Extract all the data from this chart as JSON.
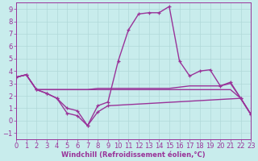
{
  "background_color": "#c8ecec",
  "grid_color": "#b0d8d8",
  "line_color": "#993399",
  "xlim": [
    0,
    23
  ],
  "ylim": [
    -1.5,
    9.5
  ],
  "yticks": [
    -1,
    0,
    1,
    2,
    3,
    4,
    5,
    6,
    7,
    8,
    9
  ],
  "xticks": [
    0,
    1,
    2,
    3,
    4,
    5,
    6,
    7,
    8,
    9,
    10,
    11,
    12,
    13,
    14,
    15,
    16,
    17,
    18,
    19,
    20,
    21,
    22,
    23
  ],
  "line1_x": [
    0,
    1,
    2,
    3,
    4,
    5,
    6,
    7,
    8,
    9,
    10,
    11,
    12,
    13,
    14,
    15,
    16,
    17,
    18,
    19,
    20,
    21,
    22,
    23
  ],
  "line1_y": [
    3.5,
    3.7,
    2.5,
    2.2,
    1.8,
    1.0,
    0.8,
    -0.4,
    1.2,
    1.5,
    4.8,
    7.3,
    8.6,
    8.7,
    8.7,
    9.2,
    4.8,
    3.6,
    4.0,
    4.1,
    2.8,
    3.1,
    1.8,
    0.5
  ],
  "line2_x": [
    0,
    1,
    2,
    3,
    4,
    5,
    6,
    7,
    8,
    9,
    10,
    11,
    12,
    13,
    14,
    15,
    16,
    17,
    18,
    19,
    20,
    21,
    22,
    23
  ],
  "line2_y": [
    3.5,
    3.7,
    2.5,
    2.5,
    2.5,
    2.5,
    2.5,
    2.5,
    2.6,
    2.6,
    2.6,
    2.6,
    2.6,
    2.6,
    2.6,
    2.6,
    2.7,
    2.8,
    2.8,
    2.8,
    2.8,
    3.0,
    1.8,
    0.5
  ],
  "line3_x": [
    0,
    1,
    2,
    3,
    4,
    5,
    6,
    7,
    8,
    9,
    10,
    11,
    12,
    13,
    14,
    15,
    16,
    17,
    18,
    19,
    20,
    21,
    22,
    23
  ],
  "line3_y": [
    3.5,
    3.7,
    2.5,
    2.5,
    2.5,
    2.5,
    2.5,
    2.5,
    2.5,
    2.5,
    2.5,
    2.5,
    2.5,
    2.5,
    2.5,
    2.5,
    2.5,
    2.5,
    2.5,
    2.5,
    2.5,
    2.5,
    1.8,
    0.5
  ],
  "line4_x": [
    0,
    1,
    2,
    3,
    4,
    5,
    6,
    7,
    8,
    9,
    22,
    23
  ],
  "line4_y": [
    3.5,
    3.7,
    2.5,
    2.2,
    1.8,
    0.6,
    0.4,
    -0.4,
    0.7,
    1.2,
    1.8,
    0.5
  ],
  "xlabel": "Windchill (Refroidissement éolien,°C)",
  "font_color": "#993399",
  "tick_fontsize": 6,
  "label_fontsize": 6,
  "linewidth": 1.0
}
